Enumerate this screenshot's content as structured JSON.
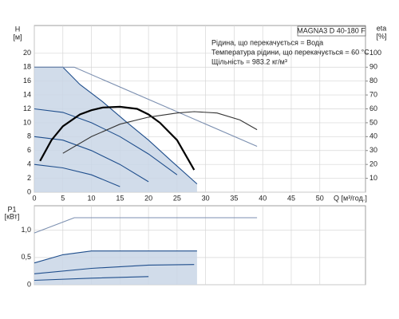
{
  "chart_data": [
    {
      "type": "line",
      "title": "MAGNA3 D 40-180 F",
      "annotations": [
        "Рідина, що перекачується = Вода",
        "Температура рідини, що перекачується = 60 °C",
        "Щільність = 983.2 кг/м³"
      ],
      "ylabel": "H",
      "yunit": "[м]",
      "y2label": "eta",
      "y2unit": "[%]",
      "xlabel": "Q [м³/год.]",
      "xlim": [
        0,
        58
      ],
      "xticks": [
        0,
        5,
        10,
        15,
        20,
        25,
        30,
        35,
        40,
        45,
        50
      ],
      "ylim": [
        0,
        24
      ],
      "yticks": [
        0,
        2,
        4,
        6,
        8,
        10,
        12,
        14,
        16,
        18,
        20
      ],
      "y2lim": [
        0,
        120
      ],
      "y2ticks": [
        10,
        20,
        30,
        40,
        50,
        60,
        70,
        80,
        90,
        100
      ],
      "grid": true,
      "series": [
        {
          "color": "#1f4e8c",
          "fill": "#c9d6e6",
          "x": [
            0,
            5,
            8,
            12,
            16,
            20,
            24,
            28.5
          ],
          "values": [
            18,
            18,
            15.5,
            13,
            10.2,
            7.5,
            4.5,
            1.2
          ]
        },
        {
          "color": "#7b8fb0",
          "x": [
            0,
            7,
            39
          ],
          "values": [
            18,
            18,
            6.6
          ]
        },
        {
          "color": "#1f4e8c",
          "x": [
            0,
            5,
            10,
            15,
            20,
            25
          ],
          "values": [
            12,
            11.5,
            10,
            8,
            5.5,
            2.5
          ]
        },
        {
          "color": "#1f4e8c",
          "x": [
            0,
            5,
            10,
            15,
            20
          ],
          "values": [
            8,
            7.5,
            6,
            4,
            1.5
          ]
        },
        {
          "color": "#1f4e8c",
          "x": [
            0,
            5,
            10,
            15
          ],
          "values": [
            4,
            3.5,
            2.5,
            0.8
          ]
        },
        {
          "color": "#000000",
          "x": [
            1,
            3,
            5,
            8,
            10,
            12,
            15,
            18,
            20,
            22,
            25,
            28
          ],
          "values": [
            4.5,
            7.5,
            9.5,
            11.2,
            11.8,
            12.2,
            12.3,
            12,
            11.2,
            10,
            7.5,
            3.2
          ]
        },
        {
          "color": "#333333",
          "axis": "y2",
          "x": [
            5,
            10,
            15,
            20,
            25,
            28,
            32,
            36,
            39
          ],
          "values": [
            28,
            40,
            49,
            54,
            57,
            58,
            57,
            52,
            45
          ]
        }
      ]
    },
    {
      "type": "line",
      "ylabel": "P1",
      "yunit": "[кВт]",
      "xlim": [
        0,
        58
      ],
      "ylim": [
        0,
        1.45
      ],
      "yticks": [
        0,
        {
          "value": 0.5,
          "label": "0,5"
        },
        {
          "value": 1,
          "label": "1,0"
        }
      ],
      "grid": true,
      "series": [
        {
          "color": "#7b8fb0",
          "x": [
            0,
            7,
            39
          ],
          "values": [
            0.95,
            1.23,
            1.23
          ]
        },
        {
          "color": "#1f4e8c",
          "fill": "#c9d6e6",
          "x": [
            0,
            5,
            10,
            28.5
          ],
          "values": [
            0.4,
            0.55,
            0.62,
            0.62
          ]
        },
        {
          "color": "#1f4e8c",
          "x": [
            0,
            10,
            20,
            28
          ],
          "values": [
            0.2,
            0.3,
            0.36,
            0.37
          ]
        },
        {
          "color": "#1f4e8c",
          "x": [
            0,
            10,
            20
          ],
          "values": [
            0.08,
            0.12,
            0.15
          ]
        }
      ]
    }
  ]
}
